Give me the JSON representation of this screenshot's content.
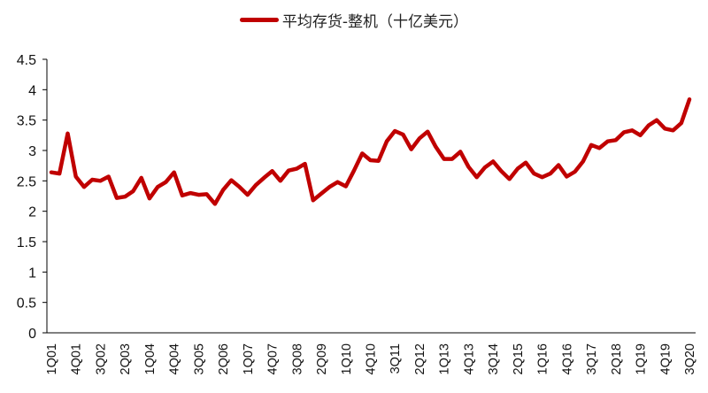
{
  "legend": {
    "label": "平均存货-整机（十亿美元）",
    "color": "#C00000"
  },
  "axes": {
    "y_ticks": [
      "0",
      "0.5",
      "1",
      "1.5",
      "2",
      "2.5",
      "3",
      "3.5",
      "4",
      "4.5"
    ],
    "x_tick_labels": [
      "1Q01",
      "4Q01",
      "3Q02",
      "2Q03",
      "1Q04",
      "4Q04",
      "3Q05",
      "2Q06",
      "1Q07",
      "4Q07",
      "3Q08",
      "2Q09",
      "1Q10",
      "4Q10",
      "3Q11",
      "2Q12",
      "1Q13",
      "4Q13",
      "3Q14",
      "2Q15",
      "1Q16",
      "4Q16",
      "3Q17",
      "2Q18",
      "1Q19",
      "4Q19",
      "3Q20"
    ]
  },
  "chart_data": {
    "type": "line",
    "title": "",
    "xlabel": "",
    "ylabel": "",
    "ylim": [
      0,
      4.5
    ],
    "y_ticks": [
      0,
      0.5,
      1,
      1.5,
      2,
      2.5,
      3,
      3.5,
      4,
      4.5
    ],
    "grid": false,
    "legend_position": "top",
    "x": [
      "1Q01",
      "2Q01",
      "3Q01",
      "4Q01",
      "1Q02",
      "2Q02",
      "3Q02",
      "4Q02",
      "1Q03",
      "2Q03",
      "3Q03",
      "4Q03",
      "1Q04",
      "2Q04",
      "3Q04",
      "4Q04",
      "1Q05",
      "2Q05",
      "3Q05",
      "4Q05",
      "1Q06",
      "2Q06",
      "3Q06",
      "4Q06",
      "1Q07",
      "2Q07",
      "3Q07",
      "4Q07",
      "1Q08",
      "2Q08",
      "3Q08",
      "4Q08",
      "1Q09",
      "2Q09",
      "3Q09",
      "4Q09",
      "1Q10",
      "2Q10",
      "3Q10",
      "4Q10",
      "1Q11",
      "2Q11",
      "3Q11",
      "4Q11",
      "1Q12",
      "2Q12",
      "3Q12",
      "4Q12",
      "1Q13",
      "2Q13",
      "3Q13",
      "4Q13",
      "1Q14",
      "2Q14",
      "3Q14",
      "4Q14",
      "1Q15",
      "2Q15",
      "3Q15",
      "4Q15",
      "1Q16",
      "2Q16",
      "3Q16",
      "4Q16",
      "1Q17",
      "2Q17",
      "3Q17",
      "4Q17",
      "1Q18",
      "2Q18",
      "3Q18",
      "4Q18",
      "1Q19",
      "2Q19",
      "3Q19",
      "4Q19",
      "1Q20",
      "2Q20",
      "3Q20"
    ],
    "series": [
      {
        "name": "平均存货-整机（十亿美元）",
        "color": "#C00000",
        "values": [
          2.64,
          2.62,
          3.28,
          2.57,
          2.4,
          2.52,
          2.5,
          2.57,
          2.22,
          2.24,
          2.33,
          2.55,
          2.21,
          2.4,
          2.48,
          2.64,
          2.26,
          2.3,
          2.27,
          2.28,
          2.12,
          2.35,
          2.51,
          2.4,
          2.27,
          2.43,
          2.55,
          2.66,
          2.5,
          2.67,
          2.7,
          2.78,
          2.18,
          2.29,
          2.4,
          2.48,
          2.41,
          2.67,
          2.95,
          2.84,
          2.83,
          3.15,
          3.32,
          3.26,
          3.02,
          3.2,
          3.31,
          3.06,
          2.86,
          2.86,
          2.98,
          2.73,
          2.56,
          2.72,
          2.82,
          2.66,
          2.53,
          2.7,
          2.8,
          2.62,
          2.56,
          2.62,
          2.76,
          2.57,
          2.65,
          2.82,
          3.09,
          3.04,
          3.15,
          3.17,
          3.3,
          3.33,
          3.25,
          3.41,
          3.5,
          3.36,
          3.33,
          3.45,
          3.84
        ]
      }
    ]
  }
}
